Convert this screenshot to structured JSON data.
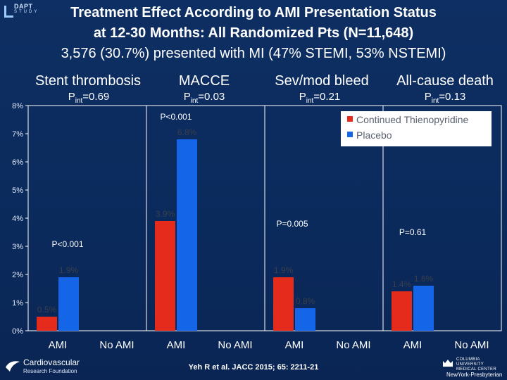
{
  "header": {
    "title_line1": "Treatment Effect According to AMI Presentation Status",
    "title_line2": "at 12-30 Months: All Randomized Pts (N=11,648)",
    "subtitle": "3,576 (30.7%) presented with MI (47% STEMI, 53% NSTEMI)",
    "logo_text": "DAPT",
    "logo_subtext": "STUDY"
  },
  "footer": {
    "org_line1": "Cardiovascular",
    "org_line2": "Research Foundation",
    "citation": "Yeh R et al. JACC 2015; 65: 2211-21",
    "right_logo_line1": "COLUMBIA UNIVERSITY",
    "right_logo_line2": "MEDICAL CENTER",
    "right_logo_line3": "NewYork-Presbyterian"
  },
  "chart_data": {
    "type": "bar",
    "ylim": [
      0,
      8
    ],
    "yticks": [
      "0%",
      "1%",
      "2%",
      "3%",
      "4%",
      "5%",
      "6%",
      "7%",
      "8%"
    ],
    "groups": [
      {
        "title": "Stent thrombosis",
        "pint": "0.69",
        "categories": [
          "AMI",
          "No AMI"
        ],
        "p_value": "P<0.001",
        "values": {
          "Continued Thienopyridine": [
            0.5,
            null
          ],
          "Placebo": [
            1.9,
            null
          ]
        },
        "labels": {
          "Continued Thienopyridine": [
            "0.5%",
            ""
          ],
          "Placebo": [
            "1.9%",
            ""
          ]
        }
      },
      {
        "title": "MACCE",
        "pint": "0.03",
        "categories": [
          "AMI",
          "No AMI"
        ],
        "p_value": "P<0.001",
        "values": {
          "Continued Thienopyridine": [
            3.9,
            null
          ],
          "Placebo": [
            6.8,
            null
          ]
        },
        "labels": {
          "Continued Thienopyridine": [
            "3.9%",
            ""
          ],
          "Placebo": [
            "6.8%",
            ""
          ]
        }
      },
      {
        "title": "Sev/mod bleed",
        "pint": "0.21",
        "categories": [
          "AMI",
          "No AMI"
        ],
        "p_value": "P=0.005",
        "values": {
          "Continued Thienopyridine": [
            1.9,
            null
          ],
          "Placebo": [
            0.8,
            null
          ]
        },
        "labels": {
          "Continued Thienopyridine": [
            "1.9%",
            ""
          ],
          "Placebo": [
            "0.8%",
            ""
          ]
        }
      },
      {
        "title": "All-cause death",
        "pint": "0.13",
        "categories": [
          "AMI",
          "No AMI"
        ],
        "p_value": "P=0.61",
        "values": {
          "Continued Thienopyridine": [
            1.4,
            null
          ],
          "Placebo": [
            1.6,
            null
          ]
        },
        "labels": {
          "Continued Thienopyridine": [
            "1.4%",
            ""
          ],
          "Placebo": [
            "1.6%",
            ""
          ]
        }
      }
    ],
    "series": [
      {
        "name": "Continued Thienopyridine",
        "color": "#e52b1b"
      },
      {
        "name": "Placebo",
        "color": "#1565e8"
      }
    ],
    "legend_position": "top-right",
    "grid": false
  }
}
